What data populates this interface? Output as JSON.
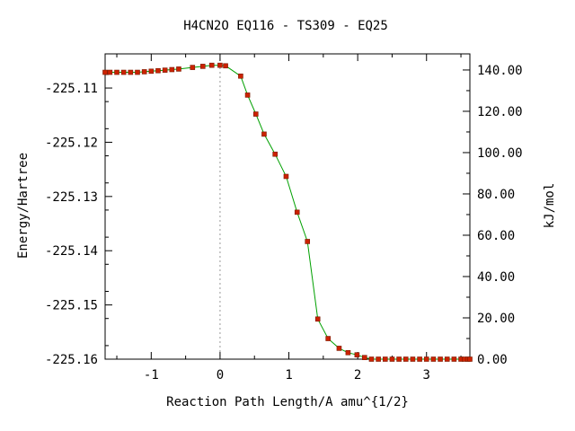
{
  "chart_data": {
    "type": "line",
    "title": "H4CN2O   EQ116 - TS309 - EQ25",
    "xlabel": "Reaction Path Length/A amu^{1/2}",
    "ylabel": "Energy/Hartree",
    "y2label": "kJ/mol",
    "xlim": [
      -1.67,
      3.63
    ],
    "ylim": [
      -225.16,
      -225.1037
    ],
    "y2lim": [
      0,
      147.8
    ],
    "x_ticks": [
      "-1",
      "0",
      "1",
      "2",
      "3"
    ],
    "x_tick_values": [
      -1,
      0,
      1,
      2,
      3
    ],
    "y_ticks": [
      "-225.11",
      "-225.12",
      "-225.13",
      "-225.14",
      "-225.15",
      "-225.16"
    ],
    "y_tick_values": [
      -225.11,
      -225.12,
      -225.13,
      -225.14,
      -225.15,
      -225.16
    ],
    "y2_ticks": [
      "140.00",
      "120.00",
      "100.00",
      "80.00",
      "60.00",
      "40.00",
      "20.00",
      "0.00"
    ],
    "y2_tick_values": [
      140,
      120,
      100,
      80,
      60,
      40,
      20,
      0
    ],
    "ts_line_x": 0,
    "grid": false,
    "series": [
      {
        "line_color": "#00a000",
        "marker_color": "#cc2200",
        "x": [
          -1.67,
          -1.6,
          -1.5,
          -1.4,
          -1.3,
          -1.2,
          -1.1,
          -1.0,
          -0.9,
          -0.8,
          -0.7,
          -0.6,
          -0.4,
          -0.25,
          -0.12,
          0.0,
          0.08,
          0.3,
          0.4,
          0.52,
          0.64,
          0.8,
          0.96,
          1.12,
          1.27,
          1.42,
          1.57,
          1.73,
          1.86,
          1.99,
          2.1,
          2.2,
          2.3,
          2.4,
          2.5,
          2.6,
          2.7,
          2.8,
          2.9,
          3.0,
          3.1,
          3.2,
          3.3,
          3.4,
          3.5,
          3.55,
          3.6,
          3.63
        ],
        "y": [
          -225.1071,
          -225.1071,
          -225.1071,
          -225.1071,
          -225.1071,
          -225.1071,
          -225.107,
          -225.1069,
          -225.1068,
          -225.1067,
          -225.1066,
          -225.1065,
          -225.1062,
          -225.106,
          -225.1058,
          -225.1058,
          -225.1059,
          -225.1078,
          -225.1113,
          -225.1148,
          -225.1185,
          -225.1222,
          -225.1263,
          -225.1329,
          -225.1383,
          -225.1526,
          -225.1562,
          -225.158,
          -225.1588,
          -225.1592,
          -225.1597,
          -225.16,
          -225.16,
          -225.16,
          -225.16,
          -225.16,
          -225.16,
          -225.16,
          -225.16,
          -225.16,
          -225.16,
          -225.16,
          -225.16,
          -225.16,
          -225.16,
          -225.16,
          -225.16,
          -225.16
        ]
      }
    ]
  }
}
